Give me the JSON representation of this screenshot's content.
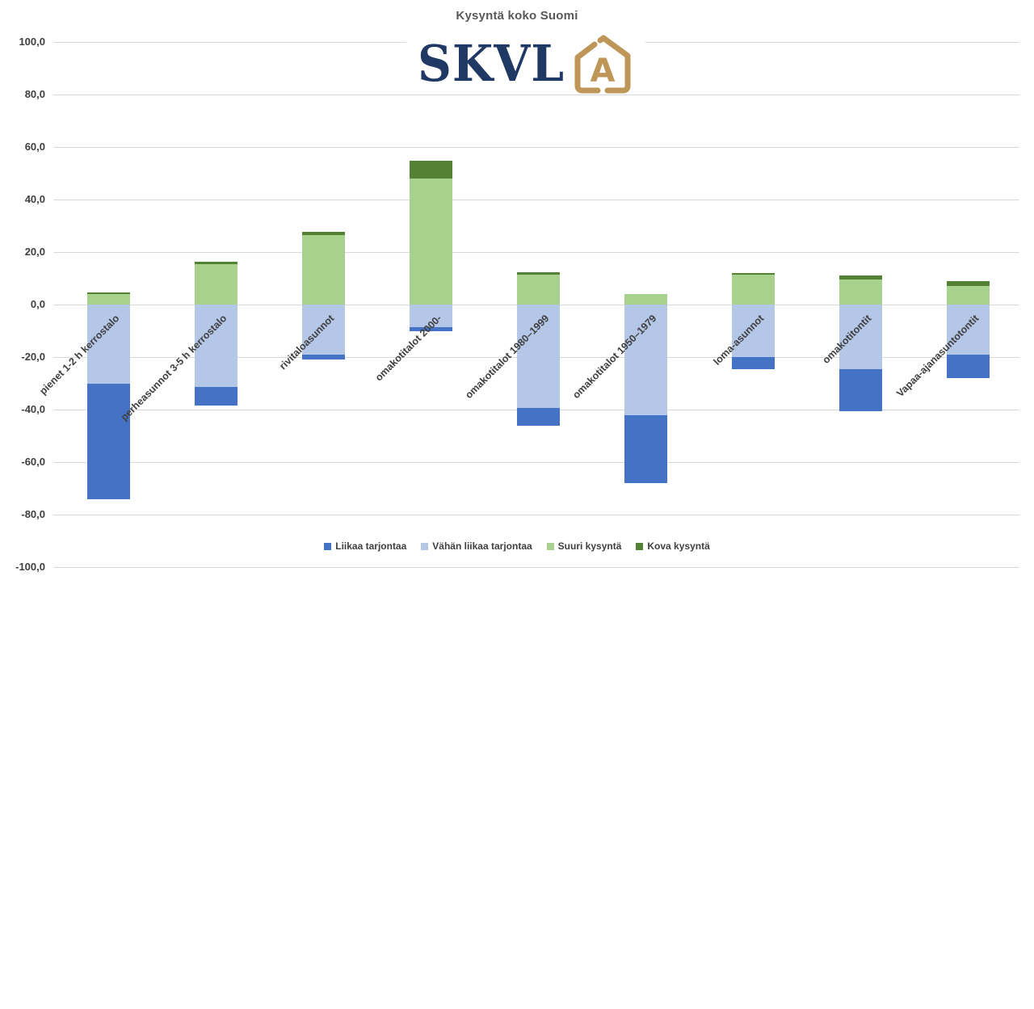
{
  "title": "Kysyntä koko Suomi",
  "logo": {
    "text": "SKVL",
    "icon_letter": "A",
    "navy_color": "#1F3864",
    "gold_color": "#BE9657"
  },
  "chart_data": {
    "type": "bar",
    "stacked": true,
    "title": "Kysyntä koko Suomi",
    "categories": [
      "pienet 1-2 h kerrostalo",
      "perheasunnot 3-5 h kerrostalo",
      "rivitaloasunnot",
      "omakotitalot 2000-",
      "omakotitalot 1980–1999",
      "omakotitalot 1950–1979",
      "loma-asunnot",
      "omakotitontit",
      "Vapaa-ajanasuntotontit"
    ],
    "series": [
      {
        "name": "Liikaa tarjontaa",
        "color": "#4472C4",
        "values": [
          -44,
          -7,
          -2,
          -1.5,
          -6.5,
          -26,
          -4.5,
          -16,
          -9
        ]
      },
      {
        "name": "Vähän liikaa tarjontaa",
        "color": "#B4C7E7",
        "values": [
          -30,
          -31.5,
          -19,
          -8.5,
          -39.5,
          -42,
          -20,
          -24.5,
          -19
        ]
      },
      {
        "name": "Suuri kysyntä",
        "color": "#A9D18E",
        "values": [
          4,
          15.5,
          26.5,
          48,
          11.5,
          4,
          11.5,
          9.5,
          7
        ]
      },
      {
        "name": "Kova kysyntä",
        "color": "#548235",
        "values": [
          0.7,
          0.8,
          1.3,
          6.7,
          0.8,
          0,
          0.5,
          1.5,
          2
        ]
      }
    ],
    "ylim": [
      -100,
      100
    ],
    "ytick_step": 20,
    "ytick_labels": [
      "100,0",
      "80,0",
      "60,0",
      "40,0",
      "20,0",
      "0,0",
      "-20,0",
      "-40,0",
      "-60,0",
      "-80,0",
      "-100,0"
    ],
    "grid": true,
    "legend_position": "bottom",
    "xlabel": "",
    "ylabel": ""
  }
}
